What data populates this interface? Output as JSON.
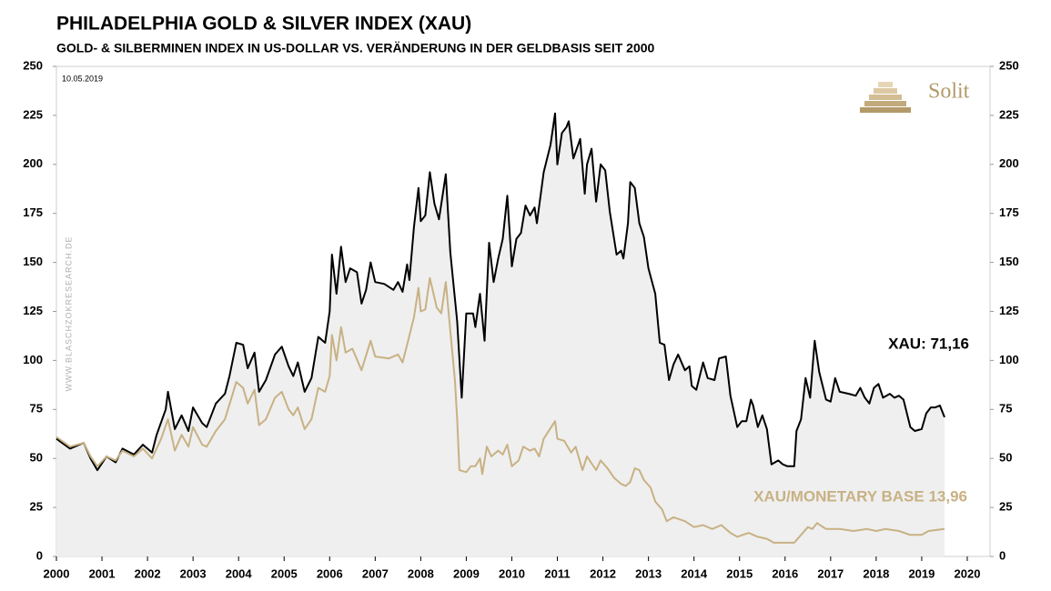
{
  "chart_data": {
    "type": "line",
    "title": "PHILADELPHIA GOLD & SILVER INDEX (XAU)",
    "subtitle": "GOLD- & SILBERMINEN INDEX IN US-DOLLAR  VS. VERÄNDERUNG IN DER GELDBASIS SEIT 2000",
    "date_note": "10.05.2019",
    "brand": "Solit",
    "watermark": "WWW.BLASCHZOKRESEARCH.DE",
    "annotations": [
      {
        "text": "XAU: 71,16",
        "series": 0
      },
      {
        "text": "XAU/MONETARY BASE 13,96",
        "series": 1
      }
    ],
    "xlim": [
      2000,
      2020.5
    ],
    "xticks": [
      2000,
      2001,
      2002,
      2003,
      2004,
      2005,
      2006,
      2007,
      2008,
      2009,
      2010,
      2011,
      2012,
      2013,
      2014,
      2015,
      2016,
      2017,
      2018,
      2019,
      2020
    ],
    "ylim": [
      0,
      250
    ],
    "yticks": [
      0,
      25,
      50,
      75,
      100,
      125,
      150,
      175,
      200,
      225,
      250
    ],
    "area_color": "#efefef",
    "series": [
      {
        "name": "XAU",
        "color": "#000000",
        "fill_area": true,
        "x": [
          2000.0,
          2000.3,
          2000.6,
          2000.75,
          2000.9,
          2001.1,
          2001.3,
          2001.45,
          2001.7,
          2001.9,
          2002.1,
          2002.2,
          2002.4,
          2002.45,
          2002.6,
          2002.75,
          2002.9,
          2003.0,
          2003.2,
          2003.3,
          2003.5,
          2003.7,
          2003.8,
          2003.95,
          2004.1,
          2004.2,
          2004.35,
          2004.45,
          2004.6,
          2004.8,
          2004.95,
          2005.1,
          2005.2,
          2005.3,
          2005.45,
          2005.6,
          2005.75,
          2005.9,
          2006.0,
          2006.05,
          2006.15,
          2006.25,
          2006.35,
          2006.45,
          2006.6,
          2006.7,
          2006.8,
          2006.9,
          2007.0,
          2007.2,
          2007.4,
          2007.5,
          2007.6,
          2007.7,
          2007.75,
          2007.85,
          2007.95,
          2008.0,
          2008.1,
          2008.2,
          2008.3,
          2008.4,
          2008.55,
          2008.65,
          2008.8,
          2008.9,
          2009.0,
          2009.15,
          2009.2,
          2009.3,
          2009.4,
          2009.5,
          2009.6,
          2009.7,
          2009.8,
          2009.9,
          2010.0,
          2010.1,
          2010.2,
          2010.3,
          2010.4,
          2010.5,
          2010.55,
          2010.7,
          2010.85,
          2010.95,
          2011.0,
          2011.1,
          2011.2,
          2011.25,
          2011.35,
          2011.5,
          2011.6,
          2011.65,
          2011.75,
          2011.85,
          2011.95,
          2012.05,
          2012.15,
          2012.3,
          2012.4,
          2012.45,
          2012.55,
          2012.6,
          2012.7,
          2012.8,
          2012.9,
          2013.0,
          2013.15,
          2013.25,
          2013.35,
          2013.45,
          2013.55,
          2013.65,
          2013.8,
          2013.9,
          2013.95,
          2014.05,
          2014.2,
          2014.3,
          2014.45,
          2014.55,
          2014.7,
          2014.8,
          2014.95,
          2015.05,
          2015.15,
          2015.25,
          2015.3,
          2015.4,
          2015.5,
          2015.6,
          2015.7,
          2015.85,
          2015.95,
          2016.05,
          2016.2,
          2016.25,
          2016.35,
          2016.45,
          2016.55,
          2016.65,
          2016.75,
          2016.9,
          2017.0,
          2017.1,
          2017.2,
          2017.4,
          2017.55,
          2017.65,
          2017.75,
          2017.85,
          2017.95,
          2018.05,
          2018.15,
          2018.3,
          2018.4,
          2018.5,
          2018.6,
          2018.75,
          2018.85,
          2019.0,
          2019.1,
          2019.2,
          2019.3,
          2019.4,
          2019.5
        ],
        "values": [
          60,
          55,
          58,
          50,
          44,
          51,
          48,
          55,
          52,
          57,
          53,
          62,
          75,
          84,
          65,
          72,
          64,
          76,
          68,
          66,
          78,
          83,
          92,
          109,
          108,
          96,
          104,
          84,
          90,
          103,
          107,
          97,
          92,
          99,
          84,
          91,
          112,
          109,
          125,
          154,
          134,
          158,
          140,
          147,
          145,
          129,
          136,
          150,
          140,
          139,
          136,
          140,
          135,
          149,
          141,
          168,
          188,
          171,
          174,
          196,
          180,
          172,
          195,
          155,
          120,
          81,
          124,
          124,
          117,
          134,
          110,
          160,
          140,
          152,
          162,
          184,
          148,
          162,
          165,
          179,
          174,
          178,
          170,
          196,
          210,
          226,
          200,
          216,
          219,
          222,
          203,
          213,
          185,
          200,
          208,
          181,
          200,
          197,
          176,
          154,
          156,
          152,
          170,
          191,
          188,
          170,
          163,
          147,
          134,
          109,
          108,
          90,
          98,
          103,
          95,
          97,
          87,
          85,
          99,
          91,
          90,
          101,
          102,
          82,
          66,
          69,
          69,
          80,
          77,
          66,
          72,
          65,
          47,
          49,
          47,
          46,
          46,
          64,
          70,
          91,
          81,
          110,
          94,
          80,
          79,
          91,
          84,
          83,
          82,
          86,
          81,
          78,
          86,
          88,
          81,
          83,
          81,
          82,
          80,
          66,
          64,
          65,
          73,
          76,
          76,
          77,
          71
        ]
      },
      {
        "name": "XAU/MONETARY BASE",
        "color": "#c8b184",
        "fill_area": false,
        "x": [
          2000.0,
          2000.3,
          2000.6,
          2000.75,
          2000.9,
          2001.1,
          2001.3,
          2001.45,
          2001.7,
          2001.9,
          2002.1,
          2002.3,
          2002.45,
          2002.6,
          2002.75,
          2002.9,
          2003.0,
          2003.2,
          2003.3,
          2003.5,
          2003.7,
          2003.95,
          2004.1,
          2004.2,
          2004.35,
          2004.45,
          2004.6,
          2004.8,
          2004.95,
          2005.1,
          2005.2,
          2005.3,
          2005.45,
          2005.6,
          2005.75,
          2005.9,
          2006.0,
          2006.05,
          2006.15,
          2006.25,
          2006.35,
          2006.5,
          2006.7,
          2006.9,
          2007.0,
          2007.3,
          2007.5,
          2007.6,
          2007.7,
          2007.85,
          2007.95,
          2008.0,
          2008.1,
          2008.2,
          2008.35,
          2008.45,
          2008.55,
          2008.65,
          2008.75,
          2008.8,
          2008.85,
          2009.0,
          2009.1,
          2009.2,
          2009.3,
          2009.35,
          2009.45,
          2009.55,
          2009.7,
          2009.8,
          2009.9,
          2010.0,
          2010.15,
          2010.25,
          2010.4,
          2010.5,
          2010.6,
          2010.7,
          2010.95,
          2011.0,
          2011.15,
          2011.3,
          2011.4,
          2011.55,
          2011.65,
          2011.85,
          2011.95,
          2012.1,
          2012.25,
          2012.4,
          2012.5,
          2012.6,
          2012.7,
          2012.8,
          2012.9,
          2013.05,
          2013.15,
          2013.3,
          2013.4,
          2013.55,
          2013.8,
          2014.0,
          2014.2,
          2014.4,
          2014.6,
          2014.8,
          2014.95,
          2015.2,
          2015.4,
          2015.6,
          2015.75,
          2016.0,
          2016.2,
          2016.35,
          2016.5,
          2016.6,
          2016.7,
          2016.9,
          2017.2,
          2017.5,
          2017.8,
          2018.0,
          2018.2,
          2018.5,
          2018.75,
          2019.0,
          2019.15,
          2019.5
        ],
        "values": [
          61,
          56,
          58,
          51,
          46,
          51,
          49,
          54,
          51,
          55,
          50,
          60,
          70,
          54,
          62,
          56,
          66,
          57,
          56,
          64,
          70,
          89,
          86,
          78,
          85,
          67,
          70,
          81,
          84,
          75,
          72,
          76,
          65,
          70,
          86,
          84,
          92,
          113,
          100,
          117,
          104,
          106,
          95,
          110,
          102,
          101,
          103,
          99,
          108,
          122,
          137,
          125,
          126,
          142,
          127,
          124,
          140,
          115,
          90,
          70,
          44,
          43,
          46,
          46,
          50,
          42,
          56,
          51,
          54,
          52,
          57,
          46,
          49,
          56,
          54,
          55,
          51,
          60,
          69,
          60,
          59,
          53,
          56,
          44,
          51,
          44,
          49,
          45,
          40,
          37,
          36,
          38,
          45,
          44,
          39,
          35,
          28,
          24,
          18,
          20,
          18,
          15,
          16,
          14,
          16,
          12,
          10,
          12,
          10,
          9,
          7,
          7,
          7,
          11,
          15,
          14,
          17,
          14,
          14,
          13,
          14,
          13,
          14,
          13,
          11,
          11,
          13,
          14
        ]
      }
    ]
  }
}
